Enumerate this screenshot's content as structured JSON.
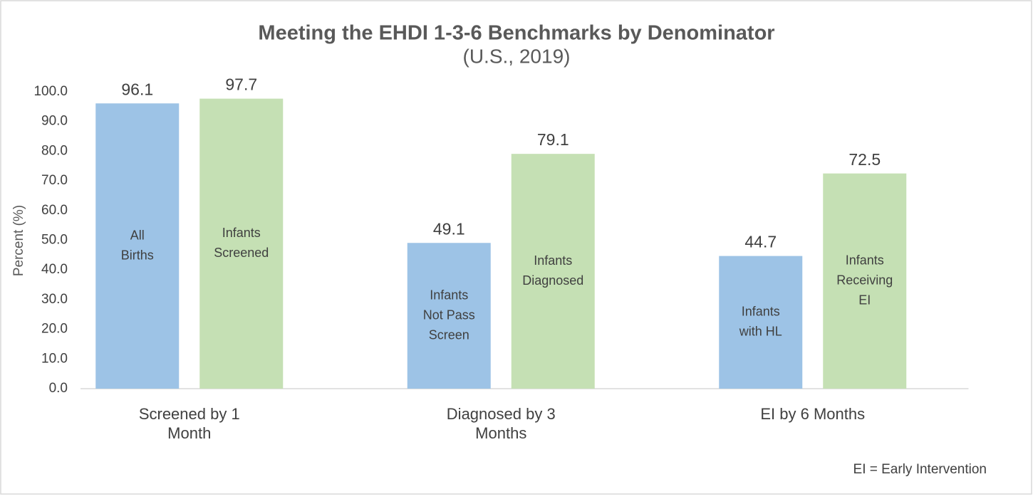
{
  "chart_data": {
    "type": "bar",
    "title": "Meeting the EHDI 1-3-6 Benchmarks by Denominator",
    "subtitle": "(U.S., 2019)",
    "y_label": "Percent (%)",
    "categories": [
      [
        "Screened by 1",
        "Month"
      ],
      [
        "Diagnosed by 3",
        "Months"
      ],
      [
        "EI by 6 Months"
      ]
    ],
    "series": [
      {
        "color": "#9dc3e6",
        "values": [
          96.1,
          49.1,
          44.7
        ],
        "bar_labels": [
          [
            "All",
            "Births"
          ],
          [
            "Infants",
            "Not Pass",
            "Screen"
          ],
          [
            "Infants",
            "with HL"
          ]
        ]
      },
      {
        "color": "#c5e0b4",
        "values": [
          97.7,
          79.1,
          72.5
        ],
        "bar_labels": [
          [
            "Infants",
            "Screened"
          ],
          [
            "Infants",
            "Diagnosed"
          ],
          [
            "Infants",
            "Receiving",
            "EI"
          ]
        ]
      }
    ],
    "ylim": [
      0,
      100
    ],
    "yticks": [
      {
        "value": 0,
        "label": "0.0"
      },
      {
        "value": 10,
        "label": "10.0"
      },
      {
        "value": 20,
        "label": "20.0"
      },
      {
        "value": 30,
        "label": "30.0"
      },
      {
        "value": 40,
        "label": "40.0"
      },
      {
        "value": 50,
        "label": "50.0"
      },
      {
        "value": 60,
        "label": "60.0"
      },
      {
        "value": 70,
        "label": "70.0"
      },
      {
        "value": 80,
        "label": "80.0"
      },
      {
        "value": 90,
        "label": "90.0"
      },
      {
        "value": {
          "v": 100
        },
        "label": "100.0"
      }
    ],
    "footnote": "EI = Early Intervention"
  }
}
